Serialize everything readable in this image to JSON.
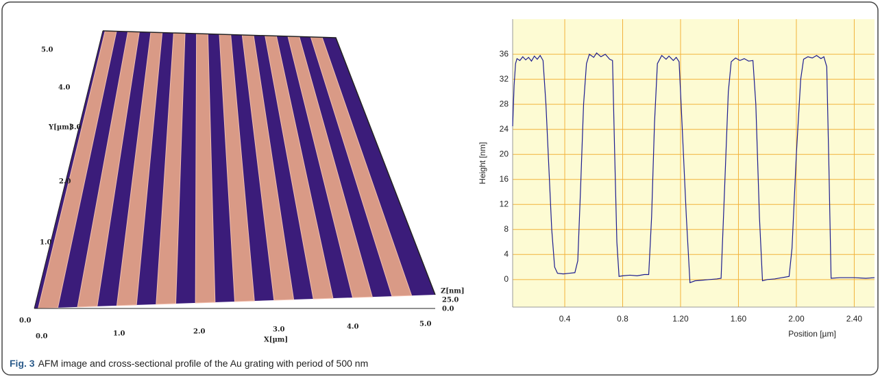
{
  "afm_image": {
    "y_title": "Y[µm]",
    "y_labels": [
      "5.0",
      "4.0",
      "3.0",
      "2.0",
      "1.0",
      "0.0"
    ],
    "x_title": "X[µm]",
    "x_labels": [
      "0.0",
      "1.0",
      "2.0",
      "3.0",
      "4.0",
      "5.0"
    ],
    "z_title": "Z[nm]",
    "z_labels": [
      "25.0",
      "0.0"
    ]
  },
  "chart_data": {
    "type": "line",
    "y_label": "Height [nm]",
    "x_label": "Position [µm]",
    "x": [
      0.04,
      0.05,
      0.06,
      0.07,
      0.09,
      0.11,
      0.13,
      0.15,
      0.17,
      0.19,
      0.21,
      0.23,
      0.25,
      0.27,
      0.29,
      0.31,
      0.33,
      0.35,
      0.39,
      0.43,
      0.47,
      0.49,
      0.51,
      0.53,
      0.55,
      0.57,
      0.6,
      0.62,
      0.65,
      0.68,
      0.71,
      0.73,
      0.745,
      0.76,
      0.775,
      0.8,
      0.85,
      0.9,
      0.95,
      0.98,
      1.0,
      1.02,
      1.04,
      1.07,
      1.1,
      1.12,
      1.15,
      1.17,
      1.19,
      1.21,
      1.24,
      1.265,
      1.3,
      1.35,
      1.4,
      1.45,
      1.48,
      1.5,
      1.53,
      1.55,
      1.58,
      1.61,
      1.64,
      1.67,
      1.7,
      1.72,
      1.745,
      1.766,
      1.8,
      1.85,
      1.9,
      1.95,
      1.97,
      2.0,
      2.03,
      2.05,
      2.08,
      2.11,
      2.14,
      2.17,
      2.19,
      2.21,
      2.225,
      2.24,
      2.3,
      2.4,
      2.48,
      2.54
    ],
    "series": [
      {
        "color": "#1b1b8f",
        "values": [
          24.5,
          31,
          34.5,
          35.3,
          35,
          35.6,
          35.1,
          35.5,
          34.9,
          35.7,
          35.2,
          35.8,
          35.0,
          28,
          18,
          8,
          2,
          1.0,
          0.9,
          1.0,
          1.1,
          3,
          15,
          28,
          34.5,
          36.0,
          35.5,
          36.2,
          35.6,
          36.0,
          35.2,
          35.0,
          20,
          6,
          0.5,
          0.6,
          0.7,
          0.6,
          0.8,
          0.8,
          10,
          25,
          34.5,
          35.8,
          35.2,
          35.7,
          35.0,
          35.5,
          34.8,
          25,
          10,
          -0.5,
          -0.2,
          -0.1,
          0,
          0.1,
          0.2,
          12,
          30,
          34.8,
          35.4,
          35.0,
          35.3,
          34.9,
          35.0,
          28,
          10,
          -0.2,
          0,
          0.1,
          0.3,
          0.5,
          5,
          20,
          32,
          35.2,
          35.6,
          35.4,
          35.8,
          35.3,
          35.6,
          34,
          18,
          0.2,
          0.3,
          0.3,
          0.2,
          0.3
        ]
      }
    ],
    "xlim": [
      0.04,
      2.54
    ],
    "ylim": [
      -4.4,
      41.6
    ],
    "xticks": [
      0.4,
      0.8,
      {
        "value": 1.2,
        "label": "1.20"
      },
      {
        "value": 1.6,
        "label": "1.60"
      },
      {
        "value": 2,
        "label": "2.00"
      },
      {
        "value": 2.4,
        "label": "2.40"
      }
    ],
    "yticks": [
      0,
      4,
      8,
      12,
      16,
      20,
      24,
      28,
      32,
      36
    ],
    "grid": true,
    "grid_color": "#f2b23a",
    "plot_background": "#fdfbd3"
  },
  "caption": {
    "label": "Fig. 3",
    "text": "AFM image and cross-sectional profile of the Au grating with period of 500 nm"
  }
}
